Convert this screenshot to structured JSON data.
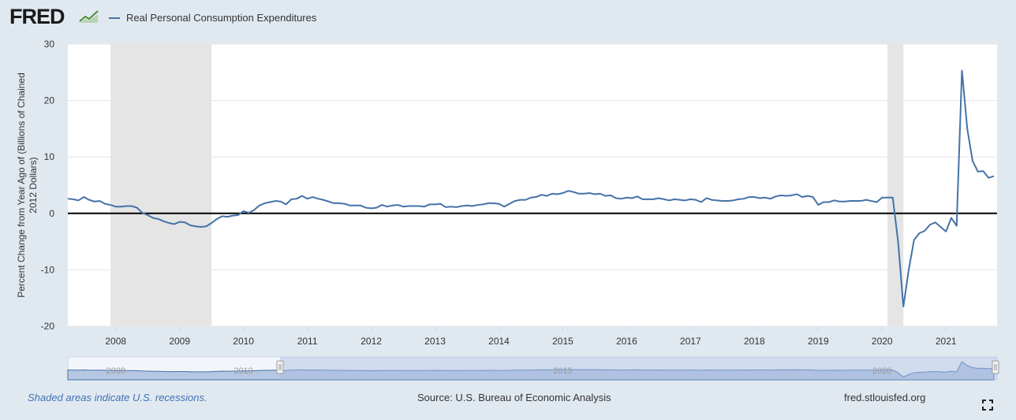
{
  "header": {
    "logo_text": "FRED",
    "logo_icon": "fred-chart-logo-icon",
    "legend_label": "Real Personal Consumption Expenditures"
  },
  "footer": {
    "recession_note": "Shaded areas indicate U.S. recessions.",
    "source": "Source: U.S. Bureau of Economic Analysis",
    "site": "fred.stlouisfed.org",
    "fullscreen_icon": "fullscreen-icon"
  },
  "colors": {
    "page_bg": "#e1e9f0",
    "plot_bg": "#ffffff",
    "series": "#4572a7",
    "recession_shade": "#e5e5e5",
    "zero_line": "#000000",
    "navigator_fill": "#b5c7e3",
    "navigator_selected": "#a8bce0"
  },
  "chart_data": {
    "type": "line",
    "title": "",
    "xlabel": "",
    "ylabel": "Percent Change from Year Ago of (Billions of Chained 2012 Dollars)",
    "ylim": [
      -20,
      30
    ],
    "yticks": [
      30,
      20,
      10,
      0,
      -10,
      -20
    ],
    "xticks": [
      "2008",
      "2009",
      "2010",
      "2011",
      "2012",
      "2013",
      "2014",
      "2015",
      "2016",
      "2017",
      "2018",
      "2019",
      "2020",
      "2021"
    ],
    "grid": true,
    "recessions": [
      [
        "2007-12",
        "2009-06"
      ],
      [
        "2020-02",
        "2020-04"
      ]
    ],
    "navigator_labels": [
      "2008",
      "2010",
      "2015",
      "2020"
    ],
    "series": [
      {
        "name": "Real Personal Consumption Expenditures",
        "x": [
          "2007-04",
          "2007-05",
          "2007-06",
          "2007-07",
          "2007-08",
          "2007-09",
          "2007-10",
          "2007-11",
          "2007-12",
          "2008-01",
          "2008-02",
          "2008-03",
          "2008-04",
          "2008-05",
          "2008-06",
          "2008-07",
          "2008-08",
          "2008-09",
          "2008-10",
          "2008-11",
          "2008-12",
          "2009-01",
          "2009-02",
          "2009-03",
          "2009-04",
          "2009-05",
          "2009-06",
          "2009-07",
          "2009-08",
          "2009-09",
          "2009-10",
          "2009-11",
          "2009-12",
          "2010-01",
          "2010-02",
          "2010-03",
          "2010-04",
          "2010-05",
          "2010-06",
          "2010-07",
          "2010-08",
          "2010-09",
          "2010-10",
          "2010-11",
          "2010-12",
          "2011-01",
          "2011-02",
          "2011-03",
          "2011-04",
          "2011-05",
          "2011-06",
          "2011-07",
          "2011-08",
          "2011-09",
          "2011-10",
          "2011-11",
          "2011-12",
          "2012-01",
          "2012-02",
          "2012-03",
          "2012-04",
          "2012-05",
          "2012-06",
          "2012-07",
          "2012-08",
          "2012-09",
          "2012-10",
          "2012-11",
          "2012-12",
          "2013-01",
          "2013-02",
          "2013-03",
          "2013-04",
          "2013-05",
          "2013-06",
          "2013-07",
          "2013-08",
          "2013-09",
          "2013-10",
          "2013-11",
          "2013-12",
          "2014-01",
          "2014-02",
          "2014-03",
          "2014-04",
          "2014-05",
          "2014-06",
          "2014-07",
          "2014-08",
          "2014-09",
          "2014-10",
          "2014-11",
          "2014-12",
          "2015-01",
          "2015-02",
          "2015-03",
          "2015-04",
          "2015-05",
          "2015-06",
          "2015-07",
          "2015-08",
          "2015-09",
          "2015-10",
          "2015-11",
          "2015-12",
          "2016-01",
          "2016-02",
          "2016-03",
          "2016-04",
          "2016-05",
          "2016-06",
          "2016-07",
          "2016-08",
          "2016-09",
          "2016-10",
          "2016-11",
          "2016-12",
          "2017-01",
          "2017-02",
          "2017-03",
          "2017-04",
          "2017-05",
          "2017-06",
          "2017-07",
          "2017-08",
          "2017-09",
          "2017-10",
          "2017-11",
          "2017-12",
          "2018-01",
          "2018-02",
          "2018-03",
          "2018-04",
          "2018-05",
          "2018-06",
          "2018-07",
          "2018-08",
          "2018-09",
          "2018-10",
          "2018-11",
          "2018-12",
          "2019-01",
          "2019-02",
          "2019-03",
          "2019-04",
          "2019-05",
          "2019-06",
          "2019-07",
          "2019-08",
          "2019-09",
          "2019-10",
          "2019-11",
          "2019-12",
          "2020-01",
          "2020-02",
          "2020-03",
          "2020-04",
          "2020-05",
          "2020-06",
          "2020-07",
          "2020-08",
          "2020-09",
          "2020-10",
          "2020-11",
          "2020-12",
          "2021-01",
          "2021-02",
          "2021-03",
          "2021-04",
          "2021-05",
          "2021-06",
          "2021-07",
          "2021-08",
          "2021-09",
          "2021-10"
        ],
        "values": [
          2.6,
          2.5,
          2.3,
          2.9,
          2.4,
          2.1,
          2.2,
          1.7,
          1.5,
          1.2,
          1.2,
          1.3,
          1.3,
          1.0,
          0.1,
          -0.3,
          -0.8,
          -1.0,
          -1.4,
          -1.7,
          -1.9,
          -1.5,
          -1.6,
          -2.1,
          -2.3,
          -2.4,
          -2.3,
          -1.7,
          -1.0,
          -0.5,
          -0.6,
          -0.4,
          -0.3,
          0.4,
          0.1,
          0.6,
          1.4,
          1.8,
          2.0,
          2.2,
          2.1,
          1.6,
          2.5,
          2.6,
          3.1,
          2.6,
          2.9,
          2.6,
          2.4,
          2.1,
          1.8,
          1.8,
          1.7,
          1.4,
          1.4,
          1.4,
          1.0,
          0.9,
          1.0,
          1.5,
          1.2,
          1.4,
          1.5,
          1.2,
          1.3,
          1.3,
          1.3,
          1.2,
          1.6,
          1.6,
          1.7,
          1.1,
          1.2,
          1.1,
          1.3,
          1.4,
          1.3,
          1.5,
          1.6,
          1.8,
          1.8,
          1.7,
          1.2,
          1.7,
          2.2,
          2.4,
          2.4,
          2.8,
          2.9,
          3.3,
          3.1,
          3.5,
          3.4,
          3.6,
          4.0,
          3.8,
          3.5,
          3.5,
          3.6,
          3.4,
          3.5,
          3.1,
          3.2,
          2.7,
          2.6,
          2.8,
          2.7,
          3.0,
          2.5,
          2.5,
          2.5,
          2.7,
          2.5,
          2.3,
          2.5,
          2.4,
          2.3,
          2.5,
          2.4,
          2.0,
          2.7,
          2.4,
          2.3,
          2.2,
          2.2,
          2.3,
          2.5,
          2.6,
          2.9,
          2.9,
          2.7,
          2.8,
          2.6,
          3.0,
          3.2,
          3.1,
          3.2,
          3.4,
          2.9,
          3.1,
          2.9,
          1.5,
          2.0,
          2.0,
          2.3,
          2.1,
          2.1,
          2.2,
          2.2,
          2.2,
          2.4,
          2.2,
          2.0,
          2.8,
          2.8,
          2.8,
          -5.0,
          -16.5,
          -10.0,
          -4.7,
          -3.5,
          -3.1,
          -2.0,
          -1.6,
          -2.4,
          -3.2,
          -0.8,
          -2.2,
          25.3,
          15.0,
          9.3,
          7.4,
          7.5,
          6.3,
          6.6
        ]
      }
    ]
  }
}
